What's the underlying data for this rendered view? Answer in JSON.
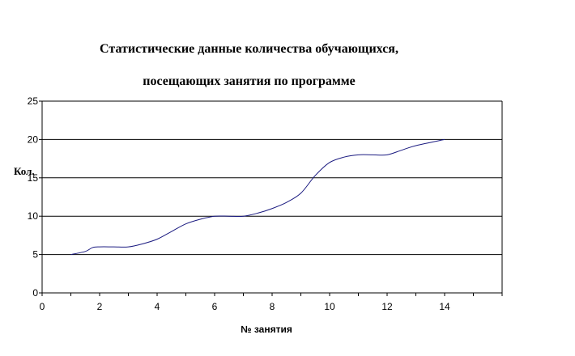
{
  "chart_data": {
    "type": "line",
    "title": "Статистические данные количества обучающихся,",
    "subtitle": "посещающих занятия по программе",
    "xlabel": "№ занятия",
    "ylabel": "Кол.",
    "xlim": [
      0,
      16
    ],
    "ylim": [
      0,
      25
    ],
    "xticks": [
      0,
      2,
      4,
      6,
      8,
      10,
      12,
      14
    ],
    "yticks": [
      0,
      5,
      10,
      15,
      20,
      25
    ],
    "grid": "horizontal",
    "series": [
      {
        "color": "#1a1a80",
        "points": [
          [
            1,
            5
          ],
          [
            1.5,
            5.4
          ],
          [
            1.75,
            5.9
          ],
          [
            2,
            6
          ],
          [
            2.5,
            6
          ],
          [
            3,
            6
          ],
          [
            3.5,
            6.4
          ],
          [
            4,
            7
          ],
          [
            4.5,
            8
          ],
          [
            5,
            9
          ],
          [
            5.5,
            9.6
          ],
          [
            6,
            10
          ],
          [
            6.5,
            10
          ],
          [
            7,
            10
          ],
          [
            7.5,
            10.4
          ],
          [
            8,
            11
          ],
          [
            8.5,
            11.8
          ],
          [
            9,
            13
          ],
          [
            9.5,
            15.3
          ],
          [
            10,
            17
          ],
          [
            10.5,
            17.7
          ],
          [
            11,
            18
          ],
          [
            11.5,
            18
          ],
          [
            12,
            18
          ],
          [
            12.5,
            18.6
          ],
          [
            13,
            19.2
          ],
          [
            14,
            20
          ]
        ]
      }
    ]
  }
}
